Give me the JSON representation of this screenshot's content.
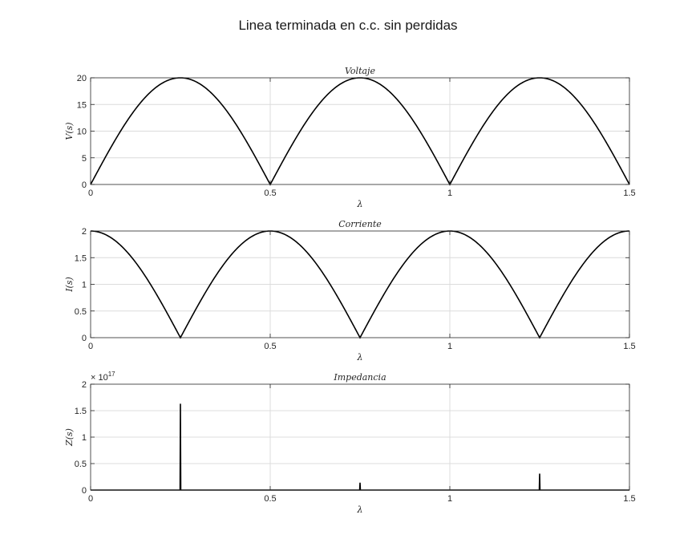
{
  "title": "Linea terminada en c.c. sin perdidas",
  "chart_data": [
    {
      "type": "line",
      "title": "Voltaje",
      "xlabel": "λ",
      "ylabel": "V(s)",
      "xlim": [
        0,
        1.5
      ],
      "ylim": [
        0,
        20
      ],
      "xticks": [
        0,
        0.5,
        1,
        1.5
      ],
      "xtick_labels": [
        "0",
        "0.5",
        "1",
        "1.5"
      ],
      "yticks": [
        0,
        5,
        10,
        15,
        20
      ],
      "ytick_labels": [
        "0",
        "5",
        "10",
        "15",
        "20"
      ],
      "grid": true,
      "curve": "20*|sin(2πx)|",
      "series": [
        {
          "x": [
            0,
            0.125,
            0.25,
            0.375,
            0.5,
            0.625,
            0.75,
            0.875,
            1,
            1.125,
            1.25,
            1.375,
            1.5
          ],
          "values": [
            0,
            14.1,
            20,
            14.1,
            0,
            14.1,
            20,
            14.1,
            0,
            14.1,
            20,
            14.1,
            0
          ]
        }
      ]
    },
    {
      "type": "line",
      "title": "Corriente",
      "xlabel": "λ",
      "ylabel": "I(s)",
      "xlim": [
        0,
        1.5
      ],
      "ylim": [
        0,
        2
      ],
      "xticks": [
        0,
        0.5,
        1,
        1.5
      ],
      "xtick_labels": [
        "0",
        "0.5",
        "1",
        "1.5"
      ],
      "yticks": [
        0,
        0.5,
        1,
        1.5,
        2
      ],
      "ytick_labels": [
        "0",
        "0.5",
        "1",
        "1.5",
        "2"
      ],
      "grid": true,
      "curve": "2*|cos(2πx)|",
      "series": [
        {
          "x": [
            0,
            0.125,
            0.25,
            0.375,
            0.5,
            0.625,
            0.75,
            0.875,
            1,
            1.125,
            1.25,
            1.375,
            1.5
          ],
          "values": [
            2,
            1.41,
            0,
            1.41,
            2,
            1.41,
            0,
            1.41,
            2,
            1.41,
            0,
            1.41,
            2
          ]
        }
      ]
    },
    {
      "type": "line",
      "title": "Impedancia",
      "xlabel": "λ",
      "ylabel": "Z(s)",
      "xlim": [
        0,
        1.5
      ],
      "ylim": [
        0,
        2
      ],
      "exponent_label": "× 10",
      "exponent_power": "17",
      "xticks": [
        0,
        0.5,
        1,
        1.5
      ],
      "xtick_labels": [
        "0",
        "0.5",
        "1",
        "1.5"
      ],
      "yticks": [
        0,
        0.5,
        1,
        1.5,
        2
      ],
      "ytick_labels": [
        "0",
        "0.5",
        "1",
        "1.5",
        "2"
      ],
      "grid": true,
      "series": [
        {
          "x": [
            0,
            0.249,
            0.25,
            0.251,
            0.749,
            0.75,
            0.751,
            1.249,
            1.25,
            1.251,
            1.5
          ],
          "values": [
            0,
            0,
            1.63,
            0,
            0,
            0.14,
            0,
            0,
            0.31,
            0,
            0
          ]
        }
      ]
    }
  ]
}
